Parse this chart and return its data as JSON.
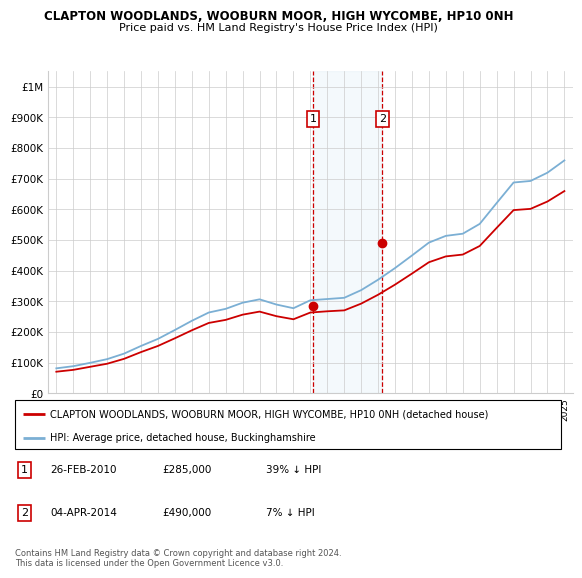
{
  "title": "CLAPTON WOODLANDS, WOOBURN MOOR, HIGH WYCOMBE, HP10 0NH",
  "subtitle": "Price paid vs. HM Land Registry's House Price Index (HPI)",
  "hpi_label": "HPI: Average price, detached house, Buckinghamshire",
  "property_label": "CLAPTON WOODLANDS, WOOBURN MOOR, HIGH WYCOMBE, HP10 0NH (detached house)",
  "hpi_color": "#7bafd4",
  "property_color": "#cc0000",
  "marker_color": "#cc0000",
  "annotation_box_color": "#cc0000",
  "background_shade": "#d6e8f5",
  "dashed_line_color": "#cc0000",
  "sale1_date_num": 2010.15,
  "sale2_date_num": 2014.25,
  "sale1_label": "1",
  "sale2_label": "2",
  "sale1_price": 285000,
  "sale2_price": 490000,
  "footnote": "Contains HM Land Registry data © Crown copyright and database right 2024.\nThis data is licensed under the Open Government Licence v3.0.",
  "ylim": [
    0,
    1050000
  ],
  "yticks": [
    0,
    100000,
    200000,
    300000,
    400000,
    500000,
    600000,
    700000,
    800000,
    900000,
    1000000
  ],
  "ytick_labels": [
    "£0",
    "£100K",
    "£200K",
    "£300K",
    "£400K",
    "£500K",
    "£600K",
    "£700K",
    "£800K",
    "£900K",
    "£1M"
  ],
  "hpi_years": [
    1995,
    1996,
    1997,
    1998,
    1999,
    2000,
    2001,
    2002,
    2003,
    2004,
    2005,
    2006,
    2007,
    2008,
    2009,
    2010,
    2011,
    2012,
    2013,
    2014,
    2015,
    2016,
    2017,
    2018,
    2019,
    2020,
    2021,
    2022,
    2023,
    2024,
    2025
  ],
  "hpi_values": [
    82000,
    89000,
    100000,
    112000,
    130000,
    155000,
    178000,
    207000,
    237000,
    264000,
    276000,
    296000,
    307000,
    290000,
    278000,
    304000,
    308000,
    312000,
    337000,
    371000,
    409000,
    450000,
    492000,
    514000,
    521000,
    553000,
    621000,
    688000,
    693000,
    720000,
    760000
  ],
  "prop_years": [
    1995,
    1996,
    1997,
    1998,
    1999,
    2000,
    2001,
    2002,
    2003,
    2004,
    2005,
    2006,
    2007,
    2008,
    2009,
    2010,
    2011,
    2012,
    2013,
    2014,
    2015,
    2016,
    2017,
    2018,
    2019,
    2020,
    2021,
    2022,
    2023,
    2024,
    2025
  ],
  "prop_values": [
    71000,
    77000,
    87000,
    97000,
    113000,
    135000,
    155000,
    180000,
    206000,
    230000,
    240000,
    257000,
    267000,
    252000,
    242000,
    264000,
    268000,
    271000,
    293000,
    322000,
    355000,
    391000,
    428000,
    447000,
    453000,
    481000,
    540000,
    598000,
    602000,
    626000,
    660000
  ],
  "xlim_left": 1994.5,
  "xlim_right": 2025.5
}
